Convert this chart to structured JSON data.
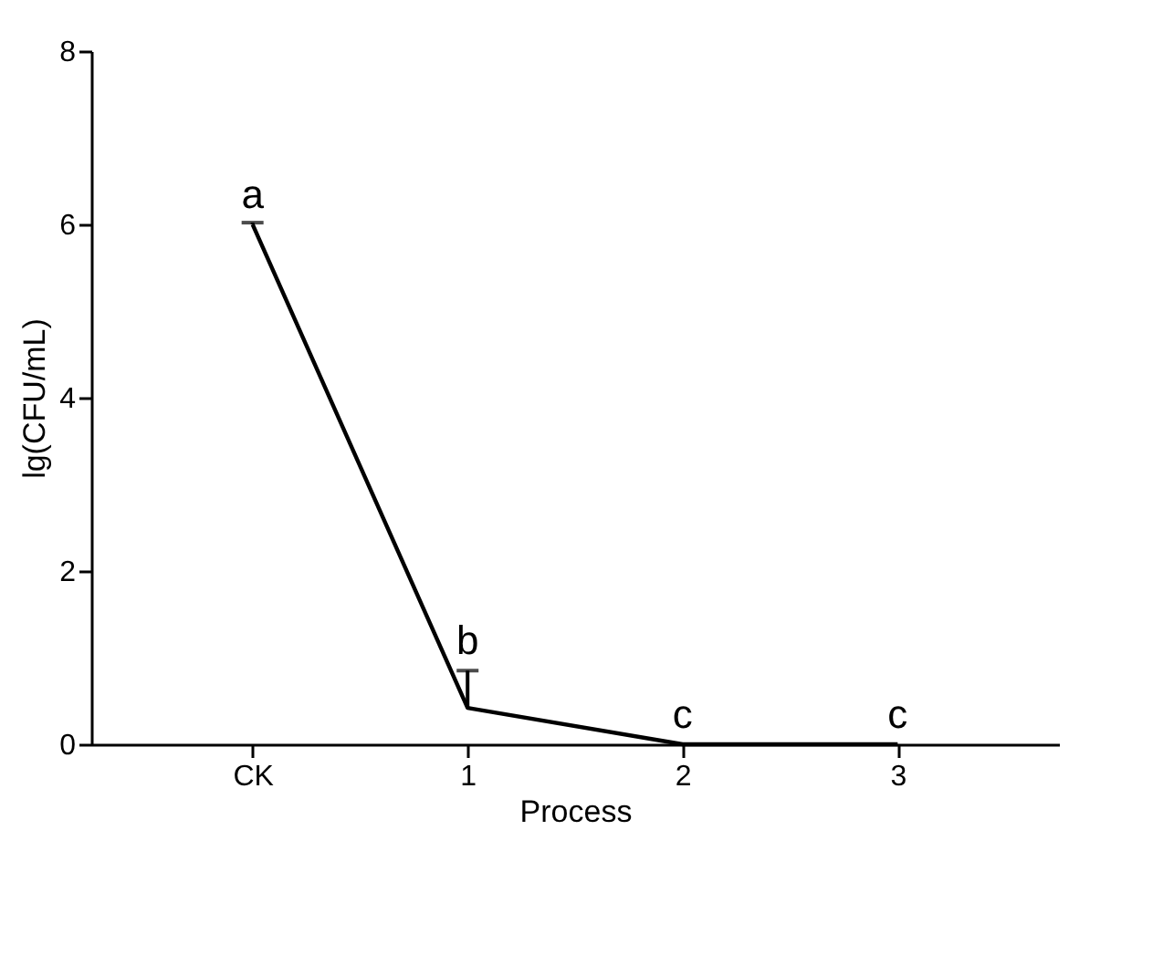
{
  "chart_data": {
    "type": "line",
    "xlabel": "Process",
    "ylabel": "lg(CFU/mL)",
    "categories": [
      "CK",
      "1",
      "2",
      "3"
    ],
    "series": [
      {
        "color": "#000000",
        "values": [
          6.0,
          0.42,
          0,
          0
        ],
        "errors": [
          [
            6.0,
            6.02
          ],
          [
            0.42,
            0.85
          ],
          null,
          null
        ]
      }
    ],
    "ylim": [
      0,
      8
    ],
    "yticks": [
      0,
      2,
      4,
      6,
      8
    ],
    "grid": false,
    "marker": "none",
    "line_style": "solid",
    "annotations": [
      {
        "text": "a",
        "x": "CK",
        "y": 6.0
      },
      {
        "text": "b",
        "x": "1",
        "y": 0.85
      },
      {
        "text": "c",
        "x": "2",
        "y": 0
      },
      {
        "text": "c",
        "x": "3",
        "y": 0
      }
    ]
  }
}
